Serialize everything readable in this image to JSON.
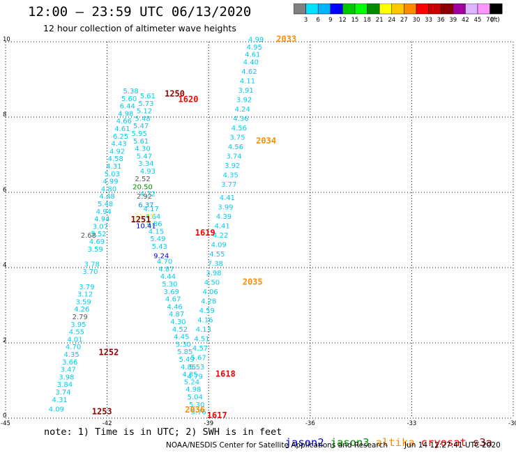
{
  "title": "12:00 – 23:59 UTC 06/13/2020",
  "subtitle": "12 hour collection of altimeter wave heights",
  "colorbar": {
    "colors": [
      "#808080",
      "#00e0ff",
      "#00b4ff",
      "#0000ff",
      "#00c800",
      "#00ff00",
      "#008c00",
      "#ffff00",
      "#ffc800",
      "#ff8c00",
      "#ff0000",
      "#c80000",
      "#8c0000",
      "#a000a0",
      "#dcb4ff",
      "#ff96ff",
      "#000000"
    ],
    "labels": [
      "3",
      "6",
      "9",
      "12",
      "15",
      "18",
      "21",
      "24",
      "27",
      "30",
      "33",
      "36",
      "39",
      "42",
      "45",
      "70"
    ],
    "unit": "(ft)"
  },
  "note": "note: 1) Time is in UTC; 2) SWH is in feet",
  "legend": [
    {
      "name": "jason2",
      "color": "#0000cc"
    },
    {
      "name": "jason3",
      "color": "#008c00"
    },
    {
      "name": "altika",
      "color": "#ff8c00"
    },
    {
      "name": "cryosat",
      "color": "#ff0000"
    },
    {
      "name": "s3a",
      "color": "#8c0000"
    }
  ],
  "credit": "NOAA/NESDIS Center for Satellite Applications and Research",
  "stamp": "Jun 14 12:27:41 UTC 2020",
  "chart_data": {
    "type": "scatter",
    "xlim": [
      -45,
      -30
    ],
    "ylim": [
      0,
      10
    ],
    "xticks": [
      -45,
      -42,
      -39,
      -36,
      -33,
      -30
    ],
    "yticks": [
      0,
      2,
      4,
      6,
      8,
      10
    ],
    "grid": true,
    "series": [
      {
        "name": "s3a",
        "color": "#00ccee",
        "points": [
          [
            -43.5,
            0.18,
            "4.09"
          ],
          [
            -43.4,
            0.43,
            "4.31"
          ],
          [
            -43.3,
            0.63,
            "3.74"
          ],
          [
            -43.25,
            0.83,
            "3.84"
          ],
          [
            -43.2,
            1.03,
            "3.98"
          ],
          [
            -43.15,
            1.23,
            "3.47"
          ],
          [
            -43.1,
            1.43,
            "3.66"
          ],
          [
            -43.05,
            1.63,
            "4.35"
          ],
          [
            -43.0,
            1.83,
            "4.70"
          ],
          [
            -42.95,
            2.03,
            "4.01"
          ],
          [
            -42.9,
            2.23,
            "4.55"
          ],
          [
            -42.85,
            2.43,
            "3.95"
          ],
          [
            -42.75,
            2.83,
            "4.26"
          ],
          [
            -42.7,
            3.03,
            "3.59"
          ],
          [
            -42.65,
            3.23,
            "3.12"
          ],
          [
            -42.6,
            3.43,
            "3.79"
          ],
          [
            -42.5,
            3.83,
            "3.70"
          ],
          [
            -42.45,
            4.03,
            "3.78"
          ],
          [
            -42.35,
            4.43,
            "3.59"
          ],
          [
            -42.3,
            4.63,
            "4.69"
          ],
          [
            -42.25,
            4.83,
            "5.52"
          ],
          [
            -42.2,
            5.03,
            "3.07"
          ],
          [
            -42.15,
            5.23,
            "4.94"
          ],
          [
            -42.1,
            5.43,
            "4.94"
          ],
          [
            -42.05,
            5.63,
            "5.48"
          ],
          [
            -42.0,
            5.83,
            "4.48"
          ],
          [
            -41.95,
            6.03,
            "4.80"
          ],
          [
            -41.9,
            6.23,
            "4.99"
          ],
          [
            -41.85,
            6.43,
            "5.03"
          ],
          [
            -41.8,
            6.63,
            "4.31"
          ],
          [
            -41.75,
            6.83,
            "4.58"
          ],
          [
            -41.7,
            7.03,
            "4.92"
          ],
          [
            -41.65,
            7.23,
            "4.43"
          ],
          [
            -41.6,
            7.43,
            "6.25"
          ],
          [
            -41.55,
            7.63,
            "4.61"
          ],
          [
            -41.5,
            7.83,
            "4.66"
          ],
          [
            -41.45,
            8.03,
            "4.98"
          ],
          [
            -41.4,
            8.23,
            "6.44"
          ],
          [
            -41.35,
            8.43,
            "5.60"
          ],
          [
            -41.3,
            8.63,
            "5.38"
          ]
        ],
        "label_only": []
      },
      {
        "name": "jason3",
        "color": "#00ccee",
        "points": [
          [
            -40.8,
            8.5,
            "5.61"
          ],
          [
            -40.85,
            8.3,
            "5.73"
          ],
          [
            -40.9,
            8.1,
            "5.12"
          ],
          [
            -40.95,
            7.9,
            "5.48"
          ],
          [
            -41.0,
            7.7,
            "5.47"
          ],
          [
            -41.05,
            7.5,
            "5.95"
          ],
          [
            -41.0,
            7.3,
            "5.61"
          ],
          [
            -40.95,
            7.1,
            "4.30"
          ],
          [
            -40.9,
            6.9,
            "5.47"
          ],
          [
            -40.85,
            6.7,
            "3.34"
          ],
          [
            -40.8,
            6.5,
            "4.93"
          ],
          [
            -40.8,
            5.9,
            "4.72"
          ],
          [
            -40.7,
            5.5,
            "4.17"
          ],
          [
            -40.65,
            5.3,
            "4.64"
          ],
          [
            -40.6,
            5.1,
            "4.86"
          ],
          [
            -40.55,
            4.9,
            "4.15"
          ],
          [
            -40.5,
            4.7,
            "5.49"
          ],
          [
            -40.45,
            4.5,
            "5.43"
          ],
          [
            -40.3,
            4.1,
            "4.70"
          ],
          [
            -40.25,
            3.9,
            "4.87"
          ],
          [
            -40.2,
            3.7,
            "4.44"
          ],
          [
            -40.15,
            3.5,
            "5.30"
          ],
          [
            -40.1,
            3.3,
            "3.69"
          ],
          [
            -40.05,
            3.1,
            "4.67"
          ],
          [
            -40.0,
            2.9,
            "4.46"
          ],
          [
            -39.95,
            2.7,
            "4.87"
          ],
          [
            -39.9,
            2.5,
            "4.30"
          ],
          [
            -39.85,
            2.3,
            "4.52"
          ],
          [
            -39.8,
            2.1,
            "4.45"
          ],
          [
            -39.75,
            1.9,
            "5.30"
          ],
          [
            -39.7,
            1.7,
            "5.85"
          ],
          [
            -39.65,
            1.5,
            "5.49"
          ],
          [
            -39.6,
            1.3,
            "4.85"
          ],
          [
            -39.55,
            1.1,
            "4.85"
          ],
          [
            -39.5,
            0.9,
            "5.24"
          ],
          [
            -39.45,
            0.7,
            "4.98"
          ],
          [
            -39.4,
            0.5,
            "5.04"
          ],
          [
            -39.35,
            0.3,
            "5.30"
          ],
          [
            -39.3,
            0.1,
            "5.76"
          ]
        ]
      },
      {
        "name": "cryosat",
        "color": "#00ccee",
        "points": [
          [
            -37.6,
            10.0,
            "4.99"
          ],
          [
            -37.65,
            9.8,
            "4.95"
          ],
          [
            -37.7,
            9.6,
            "4.61"
          ],
          [
            -37.75,
            9.4,
            "4.40"
          ],
          [
            -37.8,
            9.15,
            "4.62"
          ],
          [
            -37.85,
            8.9,
            "4.11"
          ],
          [
            -37.9,
            8.65,
            "3.91"
          ],
          [
            -37.95,
            8.4,
            "3.92"
          ],
          [
            -38.0,
            8.15,
            "4.24"
          ],
          [
            -38.05,
            7.9,
            "4.36"
          ],
          [
            -38.1,
            7.65,
            "4.56"
          ],
          [
            -38.15,
            7.4,
            "3.75"
          ],
          [
            -38.2,
            7.15,
            "4.56"
          ],
          [
            -38.25,
            6.9,
            "3.74"
          ],
          [
            -38.3,
            6.65,
            "3.92"
          ],
          [
            -38.35,
            6.4,
            "4.35"
          ],
          [
            -38.4,
            6.15,
            "3.77"
          ],
          [
            -38.45,
            5.8,
            "4.41"
          ],
          [
            -38.5,
            5.55,
            "3.99"
          ],
          [
            -38.55,
            5.3,
            "4.39"
          ],
          [
            -38.6,
            5.05,
            "4.41"
          ],
          [
            -38.65,
            4.8,
            "4.22"
          ],
          [
            -38.7,
            4.55,
            "4.09"
          ],
          [
            -38.75,
            4.3,
            "4.55"
          ],
          [
            -38.8,
            4.05,
            "7.38"
          ],
          [
            -38.85,
            3.8,
            "3.98"
          ],
          [
            -38.9,
            3.55,
            "4.50"
          ],
          [
            -38.95,
            3.3,
            "4.06"
          ],
          [
            -39.0,
            3.05,
            "4.28"
          ],
          [
            -39.05,
            2.8,
            "4.59"
          ],
          [
            -39.1,
            2.55,
            "4.16"
          ],
          [
            -39.15,
            2.3,
            "4.13"
          ],
          [
            -39.2,
            2.05,
            "4.51"
          ],
          [
            -39.25,
            1.8,
            "4.57"
          ],
          [
            -39.3,
            1.55,
            "5.67"
          ],
          [
            -39.35,
            1.3,
            "5.53"
          ],
          [
            -39.4,
            1.05,
            "4.79"
          ]
        ]
      }
    ],
    "special_values": [
      {
        "x": -40.95,
        "y": 6.3,
        "text": "2.52",
        "color": "#555555"
      },
      {
        "x": -40.95,
        "y": 6.08,
        "text": "20.50",
        "color": "#008c00"
      },
      {
        "x": -40.9,
        "y": 5.83,
        "text": "2.92",
        "color": "#555555"
      },
      {
        "x": -40.85,
        "y": 5.6,
        "text": "6.37",
        "color": "#0090ff"
      },
      {
        "x": -40.9,
        "y": 5.3,
        "text": "23.93",
        "color": "#ffff00"
      },
      {
        "x": -40.85,
        "y": 5.05,
        "text": "10.41",
        "color": "#0000cc"
      },
      {
        "x": -40.4,
        "y": 4.25,
        "text": "9.24",
        "color": "#0000cc"
      },
      {
        "x": -42.55,
        "y": 4.8,
        "text": "2.68",
        "color": "#555555"
      },
      {
        "x": -42.8,
        "y": 2.63,
        "text": "2.79",
        "color": "#555555"
      }
    ],
    "pass_labels": [
      {
        "x": -37.0,
        "y": 10.0,
        "text": "2033",
        "color": "#ff8c00"
      },
      {
        "x": -37.6,
        "y": 7.3,
        "text": "2034",
        "color": "#ff8c00"
      },
      {
        "x": -38.0,
        "y": 3.55,
        "text": "2035",
        "color": "#ff8c00"
      },
      {
        "x": -39.7,
        "y": 0.15,
        "text": "2036",
        "color": "#ff8c00"
      },
      {
        "x": -40.3,
        "y": 8.55,
        "text": "1250",
        "color": "#8c0000"
      },
      {
        "x": -39.9,
        "y": 8.4,
        "text": "1620",
        "color": "#ff0000"
      },
      {
        "x": -41.3,
        "y": 5.2,
        "text": "1251",
        "color": "#8c0000"
      },
      {
        "x": -39.4,
        "y": 4.85,
        "text": "1619",
        "color": "#ff0000"
      },
      {
        "x": -42.25,
        "y": 1.68,
        "text": "1252",
        "color": "#8c0000"
      },
      {
        "x": -38.8,
        "y": 1.1,
        "text": "1618",
        "color": "#ff0000"
      },
      {
        "x": -42.45,
        "y": 0.1,
        "text": "1253",
        "color": "#8c0000"
      },
      {
        "x": -39.05,
        "y": 0.0,
        "text": "1617",
        "color": "#ff0000"
      }
    ]
  }
}
